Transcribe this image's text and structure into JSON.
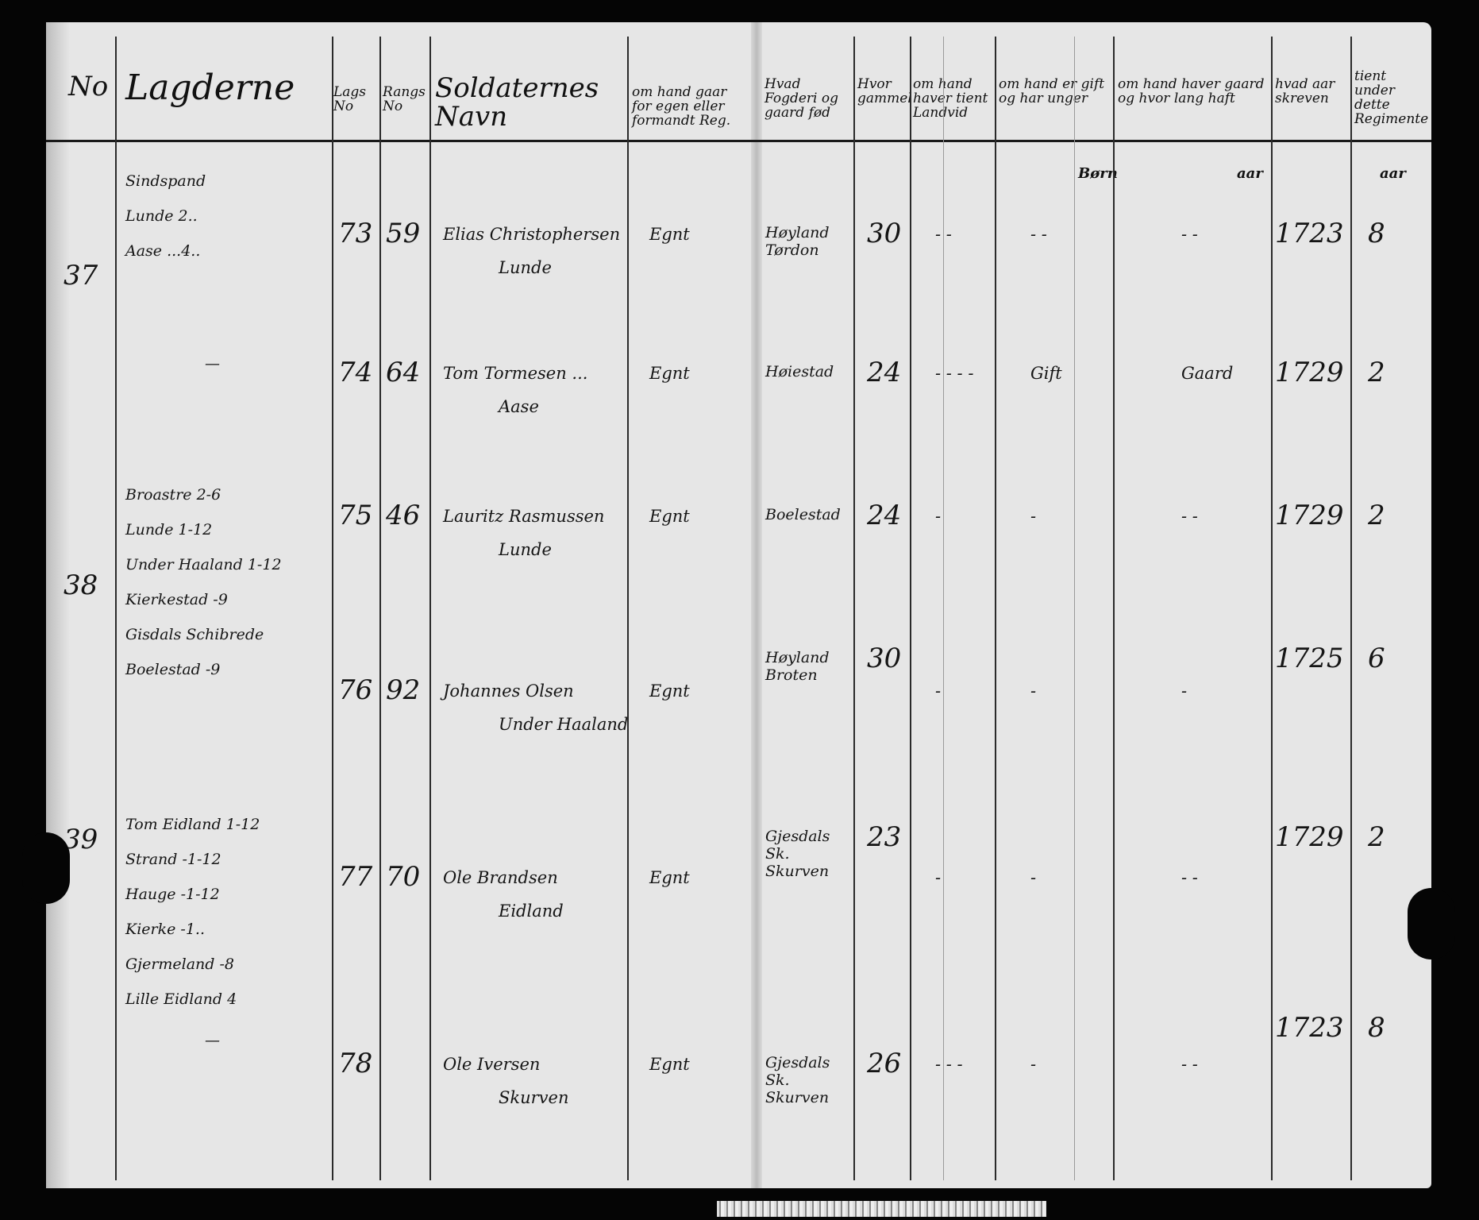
{
  "header": {
    "no": "No",
    "lagderne": "Lagderne",
    "lags_no": "Lags No",
    "rangs_no": "Rangs No",
    "soldaternes_navn": "Soldaternes Navn",
    "egen_eller_formand": "om hand gaar for egen eller formandt Reg.",
    "fogderi_gaard": "Hvad Fogderi og gaard fød",
    "alder": "Hvor gammel",
    "tient_landvid": "om hand haver tient Landvid",
    "gift": "om hand er gift og har unger",
    "gaard_tid": "om hand haver gaard og hvor lang haft",
    "aar_skreven": "hvad aar skreven",
    "tient_regimente": "tient under dette Regimente",
    "sub_born": "Børn",
    "sub_aar_gaard": "aar",
    "sub_aar_tient": "aar"
  },
  "entries": [
    {
      "lag": "37",
      "lagderne": [
        "Sindspand",
        "Lunde 2..",
        "Aase ...4.."
      ],
      "lags_no": "73",
      "rangs_no": "59",
      "name": [
        "Elias Christophersen",
        "Lunde"
      ],
      "egen": "Egnt",
      "fogderi": [
        "Høyland",
        "Tørdon"
      ],
      "age": "30",
      "tient": "- -",
      "gift": "- -",
      "gaard": "- -",
      "year": "1723",
      "served": "8"
    },
    {
      "lag": "",
      "lagderne": [
        "—"
      ],
      "lags_no": "74",
      "rangs_no": "64",
      "name": [
        "Tom Tormesen ...",
        "Aase"
      ],
      "egen": "Egnt",
      "fogderi": [
        "Høiestad"
      ],
      "age": "24",
      "tient": "- - - -",
      "gift": "Gift",
      "gaard": "Gaard",
      "year": "1729",
      "served": "2"
    },
    {
      "lag": "38",
      "lagderne": [
        "Broastre 2-6",
        "Lunde 1-12",
        "Under Haaland 1-12",
        "Kierkestad -9",
        "Gisdals Schibrede",
        "Boelestad -9"
      ],
      "lags_no": "75",
      "rangs_no": "46",
      "name": [
        "Lauritz Rasmussen",
        "Lunde"
      ],
      "egen": "Egnt",
      "fogderi": [
        "Boelestad"
      ],
      "age": "24",
      "tient": "-",
      "gift": "-",
      "gaard": "- -",
      "year": "1729",
      "served": "2"
    },
    {
      "lag": "",
      "lagderne": [],
      "lags_no": "76",
      "rangs_no": "92",
      "name": [
        "Johannes Olsen",
        "Under Haaland"
      ],
      "egen": "Egnt",
      "fogderi": [
        "Høyland",
        "Broten"
      ],
      "age": "30",
      "tient": "-",
      "gift": "-",
      "gaard": "-",
      "year": "1725",
      "served": "6"
    },
    {
      "lag": "39",
      "lagderne": [
        "Tom Eidland 1-12",
        "Strand -1-12",
        "Hauge -1-12",
        "Kierke -1..",
        "Gjermeland -8",
        "Lille Eidland 4"
      ],
      "lags_no": "77",
      "rangs_no": "70",
      "name": [
        "Ole Brandsen",
        "Eidland"
      ],
      "egen": "Egnt",
      "fogderi": [
        "Gjesdals Sk.",
        "Skurven"
      ],
      "age": "23",
      "tient": "-",
      "gift": "-",
      "gaard": "- -",
      "year": "1729",
      "served": "2"
    },
    {
      "lag": "",
      "lagderne": [
        "—"
      ],
      "lags_no": "78",
      "rangs_no": "",
      "name": [
        "Ole Iversen",
        "Skurven"
      ],
      "egen": "Egnt",
      "fogderi": [
        "Gjesdals Sk.",
        "Skurven"
      ],
      "age": "26",
      "tient": "- - -",
      "gift": "-",
      "gaard": "- -",
      "year": "1723",
      "served": "8"
    }
  ]
}
